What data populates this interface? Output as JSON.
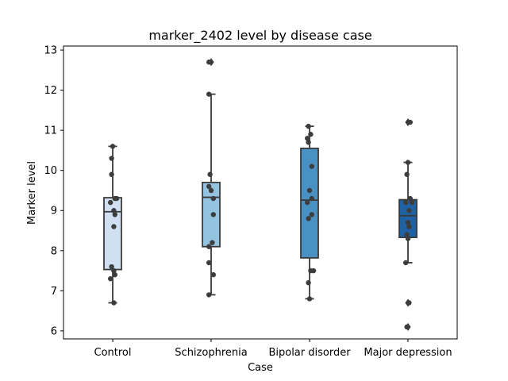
{
  "chart_data": {
    "type": "box",
    "title": "marker_2402 level by disease case",
    "xlabel": "Case",
    "ylabel": "Marker level",
    "ylim": [
      5.8,
      13.1
    ],
    "yticks": [
      "6",
      "7",
      "8",
      "9",
      "10",
      "11",
      "12",
      "13"
    ],
    "grid": false,
    "categories": [
      "Control",
      "Schizophrenia",
      "Bipolar disorder",
      "Major depression"
    ],
    "colors": [
      "#d0e0f2",
      "#94c3df",
      "#4a91c3",
      "#1e62a4"
    ],
    "boxes": [
      {
        "category": "Control",
        "whisker_low": 6.7,
        "q1": 7.53,
        "median": 8.97,
        "q3": 9.32,
        "whisker_high": 10.6,
        "outliers": []
      },
      {
        "category": "Schizophrenia",
        "whisker_low": 6.9,
        "q1": 8.1,
        "median": 9.33,
        "q3": 9.7,
        "whisker_high": 11.9,
        "outliers": [
          12.7
        ]
      },
      {
        "category": "Bipolar disorder",
        "whisker_low": 6.8,
        "q1": 7.82,
        "median": 9.26,
        "q3": 10.55,
        "whisker_high": 11.1,
        "outliers": []
      },
      {
        "category": "Major depression",
        "whisker_low": 7.7,
        "q1": 8.33,
        "median": 8.87,
        "q3": 9.27,
        "whisker_high": 10.2,
        "outliers": [
          6.1,
          6.7,
          11.2
        ]
      }
    ],
    "points": [
      {
        "category": "Control",
        "values": [
          10.6,
          10.3,
          9.9,
          9.3,
          9.3,
          9.2,
          9.0,
          8.9,
          8.6,
          7.6,
          7.5,
          7.4,
          7.3,
          6.7
        ]
      },
      {
        "category": "Schizophrenia",
        "values": [
          12.7,
          11.9,
          9.9,
          9.6,
          9.5,
          9.3,
          8.9,
          8.2,
          8.1,
          7.7,
          7.4,
          6.9
        ]
      },
      {
        "category": "Bipolar disorder",
        "values": [
          11.1,
          10.9,
          10.8,
          10.7,
          10.1,
          9.5,
          9.3,
          9.2,
          8.9,
          8.8,
          7.5,
          7.5,
          7.2,
          6.8
        ]
      },
      {
        "category": "Major depression",
        "values": [
          11.2,
          10.2,
          9.9,
          9.3,
          9.2,
          9.2,
          9.0,
          8.7,
          8.6,
          8.4,
          8.3,
          7.7,
          6.7,
          6.1
        ]
      }
    ]
  }
}
